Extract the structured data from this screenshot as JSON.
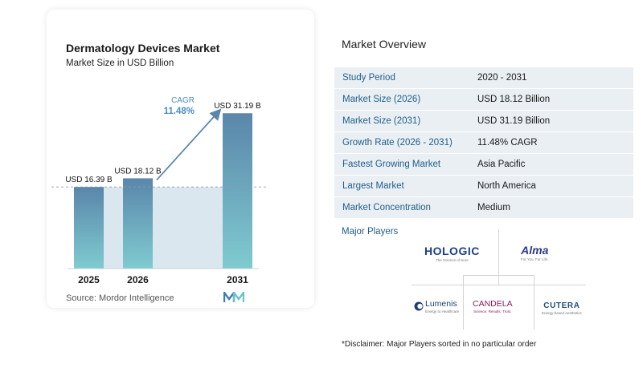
{
  "chart": {
    "title": "Dermatology Devices Market",
    "subtitle": "Market Size in USD Billion",
    "source": "Source:  Mordor Intelligence",
    "cagr_label": "CAGR",
    "cagr_value": "11.48%"
  },
  "chart_data": {
    "type": "bar",
    "title": "Dermatology Devices Market",
    "subtitle": "Market Size in USD Billion",
    "categories": [
      "2025",
      "2026",
      "2031"
    ],
    "values": [
      16.39,
      18.12,
      31.19
    ],
    "data_labels": [
      "USD 16.39 B",
      "USD 18.12 B",
      "USD 31.19 B"
    ],
    "ylim": [
      0,
      33
    ],
    "annotation": {
      "label": "CAGR",
      "value": "11.48%"
    },
    "grid": false,
    "colors": {
      "bar_top": "#5a86aa",
      "bar_bottom": "#7fcbd0",
      "band": "#dbe7ef",
      "arrow": "#5a86aa",
      "cagr": "#4a8fbf"
    }
  },
  "overview": {
    "title": "Market Overview",
    "rows": [
      {
        "label": "Study Period",
        "value": "2020 - 2031"
      },
      {
        "label": "Market Size (2026)",
        "value": "USD 18.12 Billion"
      },
      {
        "label": "Market Size (2031)",
        "value": "USD 31.19 Billion"
      },
      {
        "label": "Growth Rate (2026 - 2031)",
        "value": "11.48% CAGR"
      },
      {
        "label": "Fastest Growing Market",
        "value": "Asia Pacific"
      },
      {
        "label": "Largest Market",
        "value": "North America"
      },
      {
        "label": "Market Concentration",
        "value": "Medium"
      }
    ]
  },
  "players": {
    "label": "Major Players",
    "logos": [
      {
        "name": "HOLOGIC",
        "tag": "The Science of Sure",
        "icon": "hologic-logo"
      },
      {
        "name": "Alma",
        "tag": "For You. For Life.",
        "icon": "alma-logo"
      },
      {
        "name": "Lumenis",
        "tag": "Energy to Healthcare",
        "icon": "lumenis-logo"
      },
      {
        "name": "CANDELA",
        "tag": "Science. Results. Trust.",
        "icon": "candela-logo"
      },
      {
        "name": "CUTERA",
        "tag": "Energy-based Aesthetics",
        "icon": "cutera-logo"
      }
    ]
  },
  "disclaimer": "*Disclaimer: Major Players sorted in no particular order"
}
